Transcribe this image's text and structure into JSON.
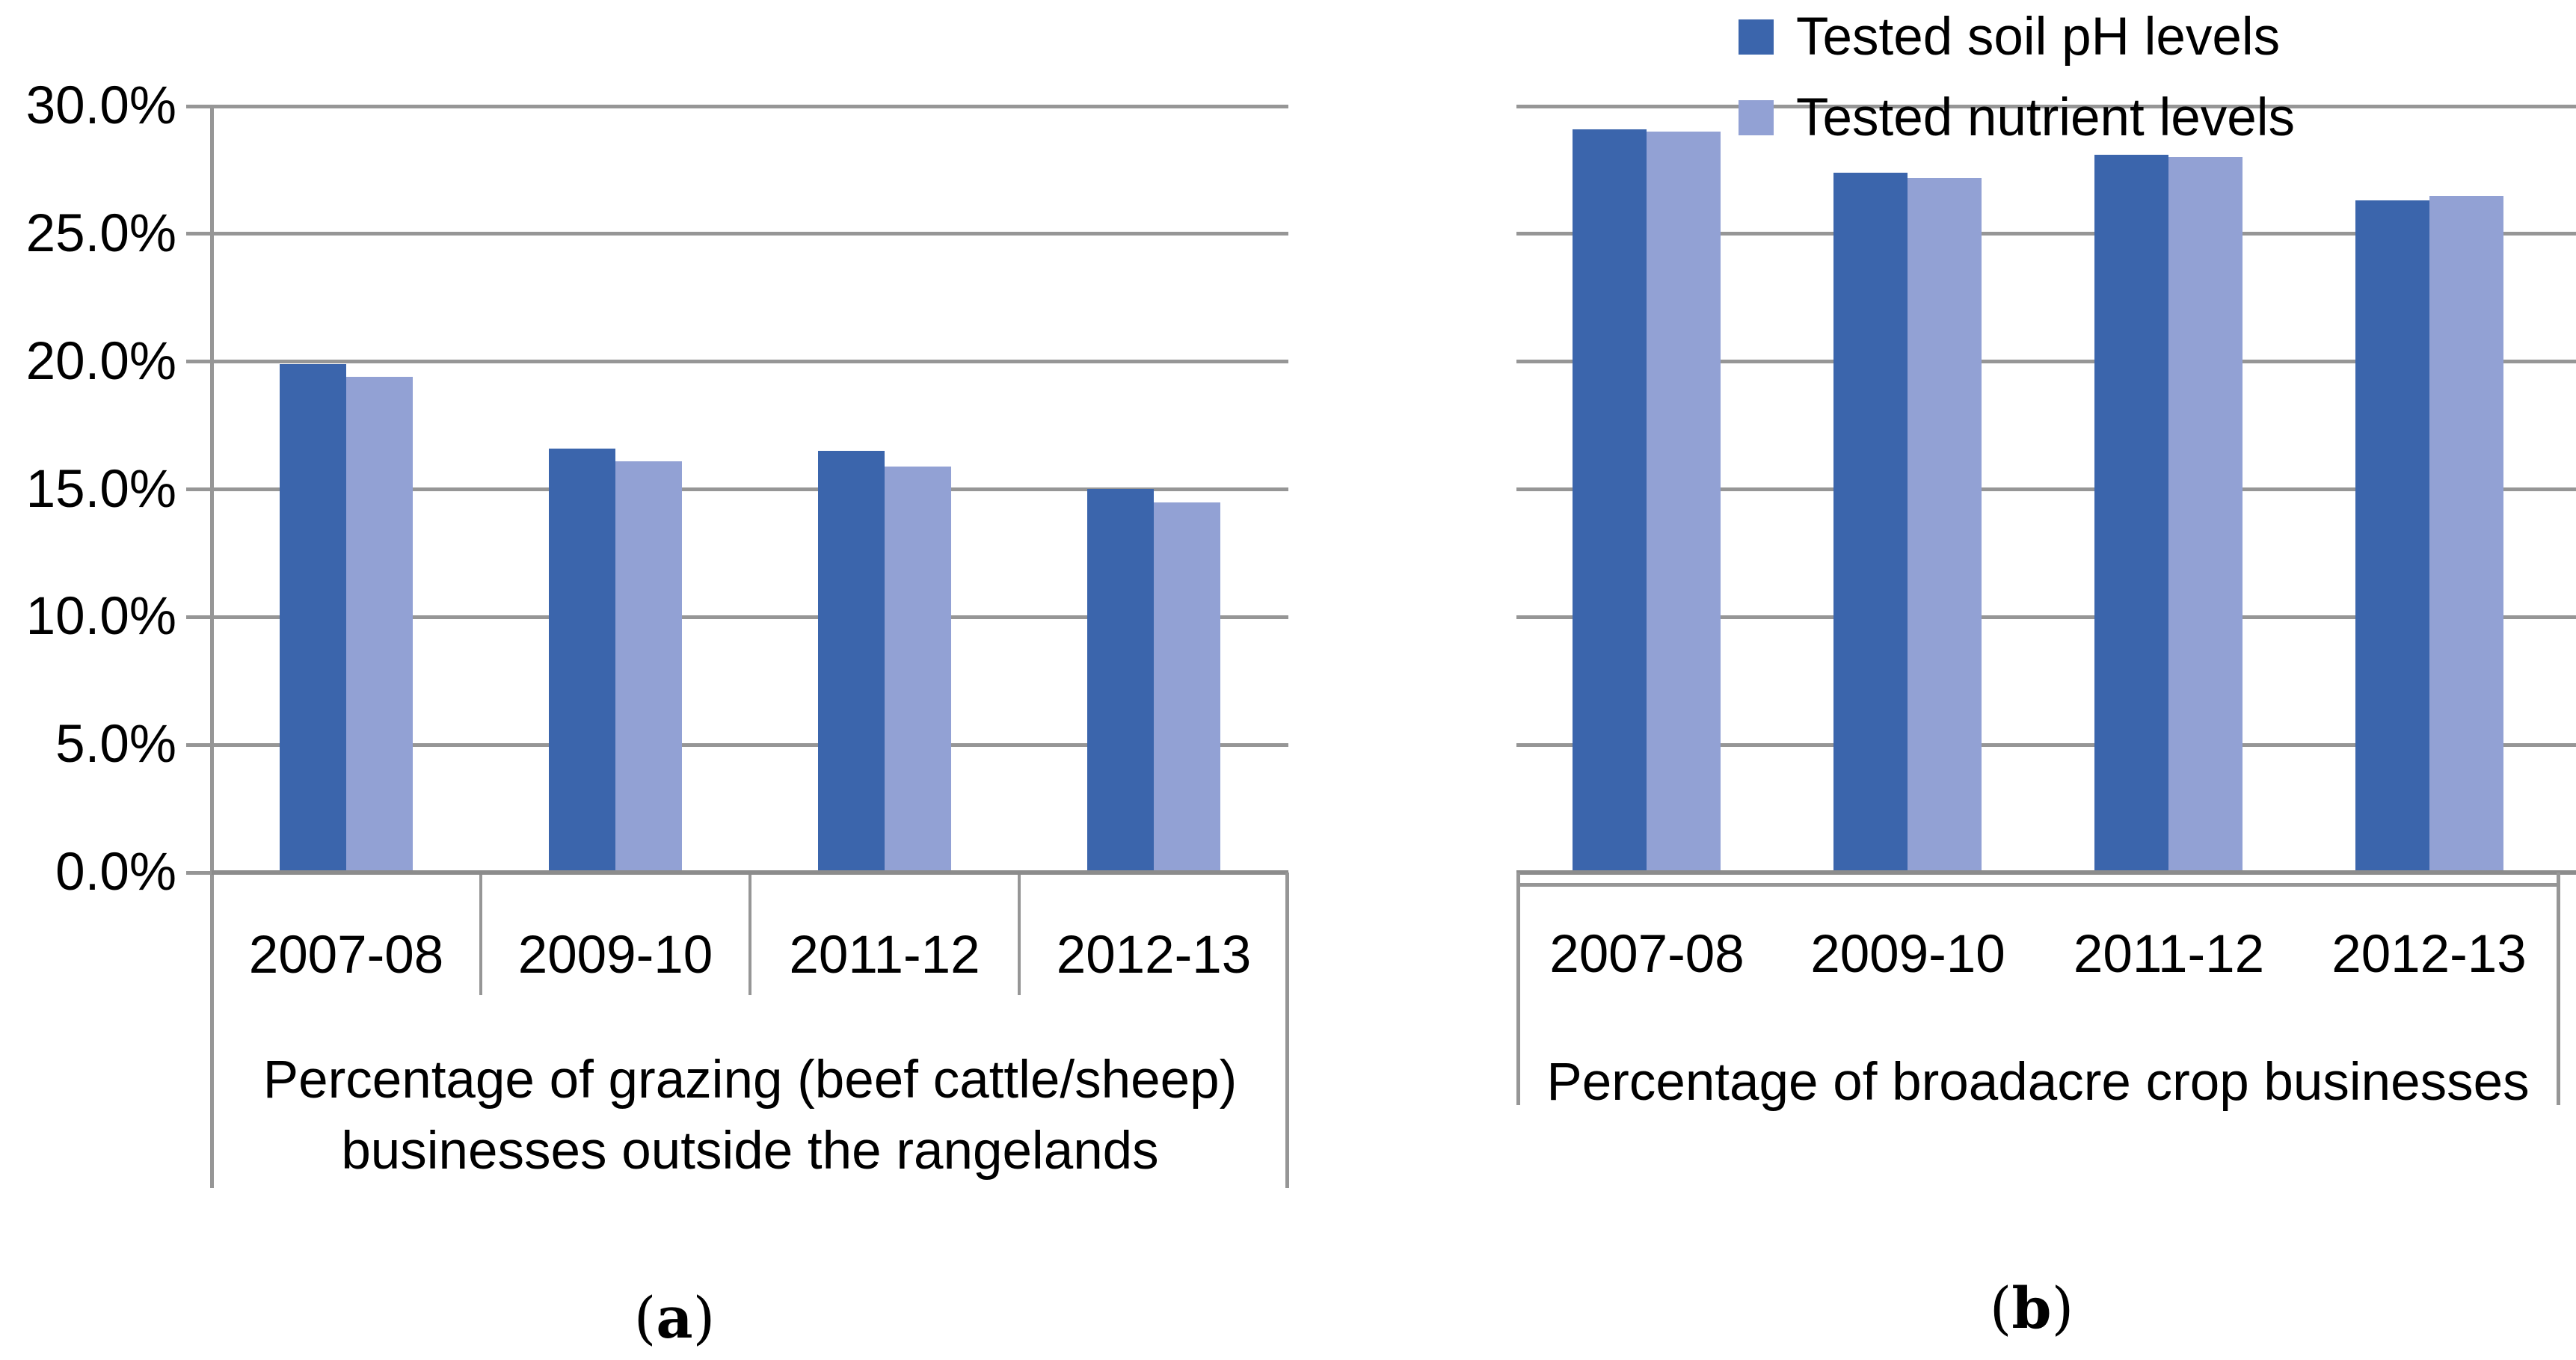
{
  "figure": {
    "background": "#ffffff",
    "description": "Two-panel grouped bar chart on soil testing by Australian farm businesses"
  },
  "palette": {
    "series1": "#3B65AC",
    "series2": "#92A1D4",
    "grid": "#969696",
    "axis": "#8C8C8C",
    "text": "#000000"
  },
  "legend": {
    "position": "top of right panel",
    "items": [
      {
        "label": "Tested soil pH levels",
        "color": "#3B65AC"
      },
      {
        "label": "Tested nutrient levels",
        "color": "#92A1D4"
      }
    ]
  },
  "y_axis": {
    "min": 0,
    "max": 30,
    "step": 5,
    "tick_labels": [
      "30.0%",
      "25.0%",
      "20.0%",
      "15.0%",
      "10.0%",
      "5.0%",
      "0.0%"
    ],
    "shown_on": "left panel only"
  },
  "chart_data": [
    {
      "id": "a",
      "type": "bar",
      "panel_caption": {
        "pre": "(",
        "letter": "a",
        "post": ")"
      },
      "categories": [
        "2007-08",
        "2009-10",
        "2011-12",
        "2012-13"
      ],
      "axis_label_lines": [
        "Percentage of grazing (beef cattle/sheep)",
        "businesses outside the rangelands"
      ],
      "series": [
        {
          "name": "Tested soil pH levels",
          "values": [
            19.9,
            16.6,
            16.5,
            15.0
          ]
        },
        {
          "name": "Tested nutrient levels",
          "values": [
            19.4,
            16.1,
            15.9,
            14.5
          ]
        }
      ],
      "ylim": [
        0,
        30
      ],
      "grid": true,
      "y_tick_format": "0.0%"
    },
    {
      "id": "b",
      "type": "bar",
      "panel_caption": {
        "pre": "(",
        "letter": "b",
        "post": ")"
      },
      "categories": [
        "2007-08",
        "2009-10",
        "2011-12",
        "2012-13"
      ],
      "axis_label_lines": [
        "Percentage of broadacre crop businesses"
      ],
      "series": [
        {
          "name": "Tested soil pH levels",
          "values": [
            29.1,
            27.4,
            28.1,
            26.3
          ]
        },
        {
          "name": "Tested nutrient levels",
          "values": [
            29.0,
            27.2,
            28.0,
            26.5
          ]
        }
      ],
      "ylim": [
        0,
        30
      ],
      "grid": true,
      "y_tick_format": "none"
    }
  ]
}
